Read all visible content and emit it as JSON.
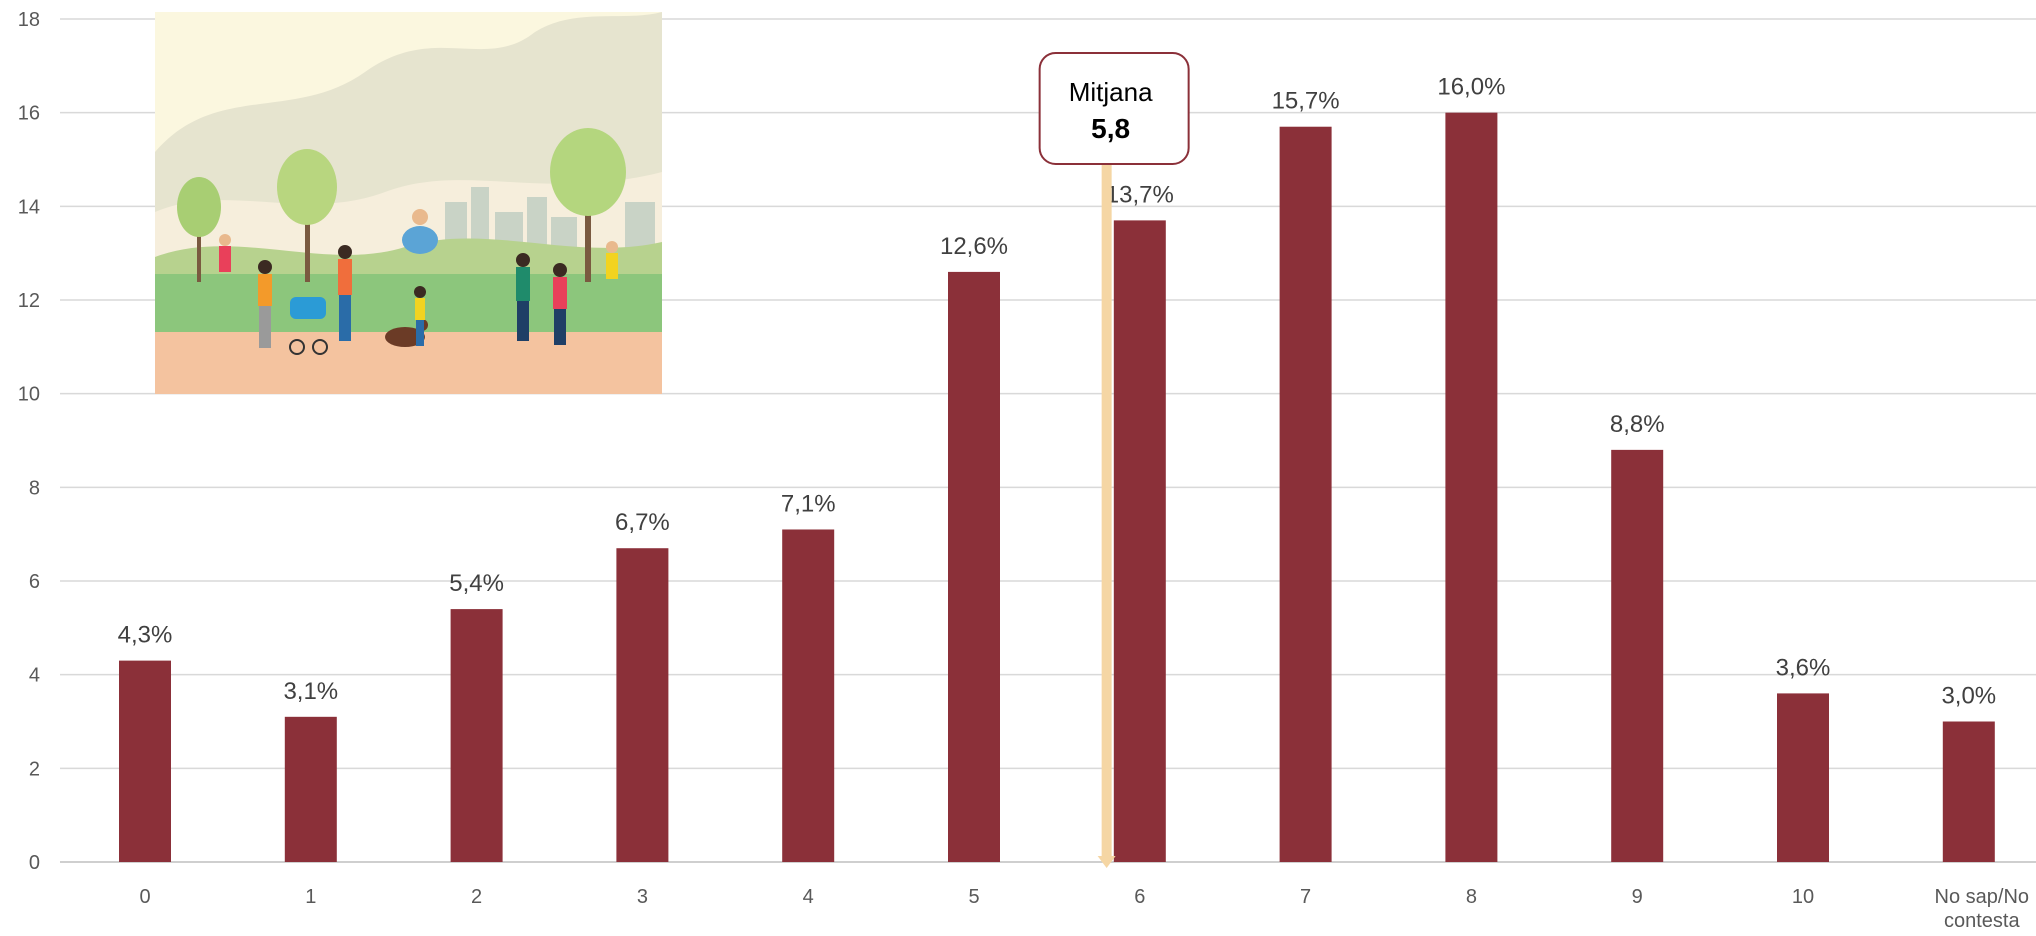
{
  "chart_data": {
    "type": "bar",
    "categories": [
      "0",
      "1",
      "2",
      "3",
      "4",
      "5",
      "6",
      "7",
      "8",
      "9",
      "10",
      "No sap/No contesta"
    ],
    "values": [
      4.3,
      3.1,
      5.4,
      6.7,
      7.1,
      12.6,
      13.7,
      15.7,
      16.0,
      8.8,
      3.6,
      3.0
    ],
    "data_labels": [
      "4,3%",
      "3,1%",
      "5,4%",
      "6,7%",
      "7,1%",
      "12,6%",
      "13,7%",
      "15,7%",
      "16,0%",
      "8,8%",
      "3,6%",
      "3,0%"
    ],
    "ylim": [
      0,
      18
    ],
    "yticks": [
      0,
      2,
      4,
      6,
      8,
      10,
      12,
      14,
      16,
      18
    ],
    "grid": true,
    "bar_color": "#8B3039",
    "mean_line_color": "#F5D6A4",
    "mean": {
      "value": 5.8,
      "title": "Mitjana",
      "label": "5,8"
    },
    "title": "",
    "xlabel": "",
    "ylabel": ""
  },
  "illustration": {
    "icon": "park-people-illustration"
  }
}
